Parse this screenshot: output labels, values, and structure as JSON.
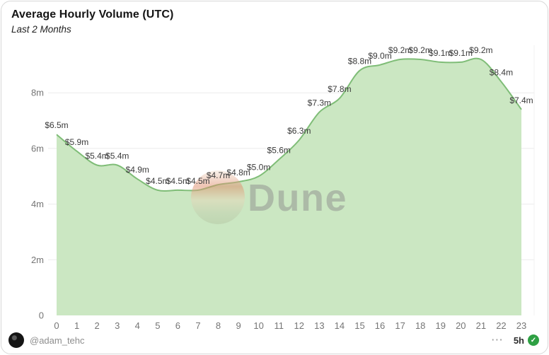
{
  "chart_data": {
    "type": "area",
    "title": "Average Hourly Volume (UTC)",
    "subtitle": "Last 2 Months",
    "categories": [
      "0",
      "1",
      "2",
      "3",
      "4",
      "5",
      "6",
      "7",
      "8",
      "9",
      "10",
      "11",
      "12",
      "13",
      "14",
      "15",
      "16",
      "17",
      "18",
      "19",
      "20",
      "21",
      "22",
      "23"
    ],
    "values": [
      6.5,
      5.9,
      5.4,
      5.4,
      4.9,
      4.5,
      4.5,
      4.5,
      4.7,
      4.8,
      5.0,
      5.6,
      6.3,
      7.3,
      7.8,
      8.8,
      9.0,
      9.2,
      9.2,
      9.1,
      9.1,
      9.2,
      8.4,
      7.4
    ],
    "point_labels": [
      "$6.5m",
      "$5.9m",
      "$5.4m",
      "$5.4m",
      "$4.9m",
      "$4.5m",
      "$4.5m",
      "$4.5m",
      "$4.7m",
      "$4.8m",
      "$5.0m",
      "$5.6m",
      "$6.3m",
      "$7.3m",
      "$7.8m",
      "$8.8m",
      "$9.0m",
      "$9.2m",
      "$9.2m",
      "$9.1m",
      "$9.1m",
      "$9.2m",
      "$8.4m",
      "$7.4m"
    ],
    "xlabel": "",
    "ylabel": "",
    "ylim": [
      0,
      10
    ],
    "yticks": [
      0,
      2,
      4,
      6,
      8
    ],
    "ytick_labels": [
      "0",
      "2m",
      "4m",
      "6m",
      "8m"
    ],
    "grid": true,
    "legend": "none",
    "fill_color": "#cbe7c2",
    "line_color": "#7fbd77",
    "label_color": "#3a3a3a",
    "axis_color": "#757575",
    "grid_color": "#ebebeb"
  },
  "watermark": {
    "text": "Dune"
  },
  "footer": {
    "handle": "@adam_tehc",
    "more": "⋯",
    "age": "5h",
    "check_glyph": "✓"
  }
}
